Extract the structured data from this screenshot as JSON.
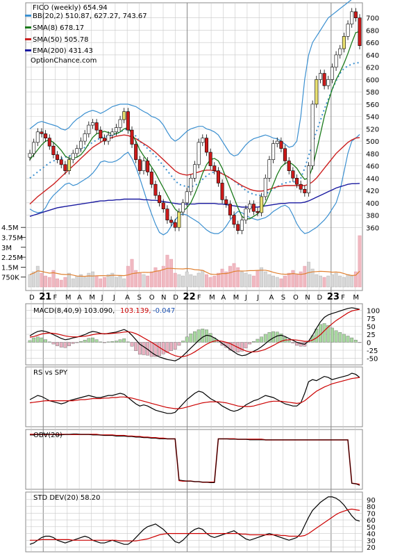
{
  "header": {
    "title": "FICO (weekly) 654.94",
    "legend": [
      {
        "label": "BB(20,2) 510.87, 627.27, 743.67",
        "color": "#3a8fd0"
      },
      {
        "label": "SMA(8) 678.17",
        "color": "#1a7a1a"
      },
      {
        "label": "SMA(50) 505.78",
        "color": "#cc2020"
      },
      {
        "label": "EMA(200) 431.43",
        "color": "#1a1aa0"
      }
    ],
    "watermark": "OptionChance.com"
  },
  "panels": {
    "macd": {
      "label": "MACD(8,40,9) 103.090,",
      "value_signal": "103.139,",
      "value_hist": "-0.047",
      "signal_color": "#cc0000",
      "hist_color": "#1a4fb0"
    },
    "rs": {
      "label": "RS vs SPY"
    },
    "obv": {
      "label": "OBV(20)"
    },
    "std": {
      "label": "STD DEV(20) 58.20"
    }
  },
  "colors": {
    "up_candle": "#ffffff",
    "down_candle": "#cc1a1a",
    "yellow_up": "#e8e070",
    "grid": "#c8c8c8",
    "price_line": "#000000",
    "volume_up": "#d8d8d8",
    "volume_down": "#f0b8c0",
    "volume_ma": "#e08030",
    "hist_up": "#a8d8a0",
    "hist_down": "#e8b0c0"
  },
  "chart_data": [
    {
      "type": "candlestick",
      "title": "FICO (weekly) 654.94",
      "x_tick_labels": [
        "D",
        "21",
        "F",
        "M",
        "A",
        "M",
        "J",
        "J",
        "A",
        "S",
        "O",
        "N",
        "D",
        "22",
        "F",
        "M",
        "A",
        "M",
        "J",
        "J",
        "A",
        "S",
        "O",
        "N",
        "D",
        "23",
        "F",
        "M"
      ],
      "y_ticks": [
        360,
        380,
        400,
        420,
        440,
        460,
        480,
        500,
        520,
        540,
        560,
        580,
        600,
        620,
        640,
        660,
        680,
        700
      ],
      "ylim": [
        340,
        720
      ],
      "close_series": [
        480,
        498,
        515,
        512,
        505,
        492,
        478,
        470,
        462,
        452,
        470,
        480,
        488,
        500,
        512,
        526,
        530,
        518,
        505,
        500,
        510,
        515,
        522,
        535,
        548,
        518,
        495,
        470,
        452,
        468,
        450,
        430,
        412,
        400,
        390,
        372,
        368,
        360,
        385,
        400,
        418,
        440,
        462,
        498,
        505,
        482,
        460,
        452,
        432,
        405,
        398,
        380,
        365,
        355,
        372,
        390,
        398,
        386,
        384,
        410,
        440,
        470,
        496,
        500,
        488,
        468,
        452,
        440,
        430,
        422,
        416,
        460,
        560,
        600,
        610,
        590,
        600,
        620,
        640,
        650,
        670,
        690,
        710,
        700,
        654.94
      ],
      "sma8": [
        470,
        478,
        486,
        494,
        500,
        502,
        498,
        492,
        485,
        476,
        472,
        472,
        474,
        478,
        486,
        496,
        506,
        512,
        514,
        516,
        514,
        512,
        512,
        515,
        520,
        522,
        512,
        500,
        486,
        476,
        468,
        458,
        448,
        436,
        424,
        412,
        400,
        390,
        384,
        386,
        392,
        400,
        414,
        430,
        448,
        462,
        470,
        472,
        468,
        456,
        440,
        424,
        408,
        392,
        378,
        374,
        374,
        378,
        382,
        390,
        400,
        414,
        430,
        446,
        458,
        464,
        466,
        462,
        456,
        446,
        438,
        440,
        458,
        484,
        512,
        540,
        564,
        584,
        600,
        612,
        626,
        642,
        660,
        676,
        678.17
      ],
      "sma50": [
        398,
        404,
        410,
        415,
        420,
        425,
        430,
        436,
        442,
        448,
        454,
        460,
        466,
        472,
        478,
        484,
        490,
        494,
        498,
        502,
        504,
        506,
        508,
        509,
        510,
        509,
        507,
        504,
        500,
        496,
        492,
        487,
        482,
        476,
        470,
        464,
        458,
        452,
        448,
        446,
        445,
        446,
        448,
        450,
        452,
        453,
        453,
        452,
        450,
        447,
        444,
        440,
        436,
        432,
        428,
        425,
        422,
        420,
        419,
        419,
        420,
        422,
        424,
        426,
        427,
        428,
        428,
        428,
        428,
        428,
        428,
        430,
        434,
        440,
        448,
        456,
        464,
        472,
        480,
        486,
        492,
        498,
        502,
        505,
        505.78
      ],
      "ema200": [
        378,
        380,
        382,
        384,
        386,
        388,
        390,
        392,
        393,
        394,
        395,
        396,
        397,
        398,
        399,
        400,
        401,
        402,
        403,
        403,
        404,
        404,
        405,
        405,
        406,
        406,
        406,
        406,
        406,
        405,
        405,
        404,
        404,
        403,
        402,
        401,
        400,
        399,
        398,
        398,
        398,
        398,
        398,
        399,
        399,
        399,
        399,
        399,
        398,
        398,
        397,
        396,
        395,
        394,
        393,
        393,
        393,
        393,
        393,
        394,
        395,
        396,
        397,
        398,
        399,
        399,
        400,
        400,
        400,
        400,
        401,
        403,
        406,
        409,
        412,
        415,
        418,
        421,
        424,
        426,
        428,
        430,
        431,
        431,
        431.43
      ],
      "bb_upper": [
        520,
        525,
        530,
        532,
        530,
        528,
        526,
        524,
        520,
        518,
        522,
        530,
        536,
        540,
        545,
        548,
        550,
        548,
        545,
        548,
        552,
        556,
        558,
        560,
        560,
        560,
        558,
        556,
        552,
        548,
        545,
        540,
        538,
        534,
        526,
        515,
        505,
        500,
        504,
        510,
        516,
        520,
        522,
        524,
        524,
        520,
        518,
        515,
        510,
        500,
        490,
        480,
        476,
        478,
        486,
        494,
        500,
        504,
        506,
        508,
        510,
        508,
        505,
        504,
        500,
        495,
        490,
        492,
        500,
        540,
        600,
        640,
        660,
        670,
        680,
        690,
        700,
        705,
        710,
        715,
        720,
        725,
        730,
        740,
        743.67
      ],
      "bb_middle": [
        440,
        445,
        450,
        455,
        460,
        465,
        468,
        470,
        472,
        474,
        476,
        478,
        482,
        486,
        490,
        494,
        498,
        502,
        505,
        507,
        508,
        510,
        512,
        515,
        518,
        520,
        515,
        508,
        500,
        494,
        488,
        482,
        476,
        468,
        460,
        452,
        444,
        436,
        430,
        428,
        426,
        426,
        428,
        432,
        438,
        444,
        448,
        450,
        450,
        448,
        444,
        440,
        436,
        430,
        426,
        420,
        416,
        414,
        412,
        412,
        414,
        418,
        422,
        426,
        430,
        432,
        434,
        434,
        434,
        440,
        456,
        476,
        496,
        516,
        534,
        552,
        568,
        584,
        598,
        610,
        618,
        622,
        625,
        627,
        627.27
      ],
      "bb_lower": [
        390,
        386,
        384,
        385,
        392,
        404,
        412,
        418,
        424,
        430,
        432,
        428,
        430,
        434,
        438,
        442,
        448,
        456,
        466,
        468,
        466,
        466,
        468,
        472,
        478,
        482,
        472,
        458,
        440,
        420,
        400,
        382,
        365,
        352,
        348,
        352,
        362,
        372,
        380,
        382,
        380,
        376,
        372,
        368,
        362,
        356,
        352,
        350,
        350,
        354,
        362,
        372,
        380,
        386,
        384,
        380,
        376,
        374,
        372,
        374,
        376,
        380,
        386,
        390,
        394,
        396,
        392,
        380,
        366,
        356,
        350,
        352,
        356,
        360,
        366,
        372,
        380,
        390,
        400,
        420,
        450,
        480,
        500,
        505,
        510.87
      ],
      "volume_labels": [
        "750K",
        "1.5M",
        "2.25M",
        "3M",
        "3.75M",
        "4.5M"
      ]
    },
    {
      "type": "line",
      "title": "MACD(8,40,9) 103.090, 103.139, -0.047",
      "y_ticks": [
        -50,
        -25,
        0,
        25,
        50,
        75,
        100
      ],
      "ylim": [
        -62,
        112
      ],
      "macd": [
        20,
        28,
        34,
        36,
        34,
        30,
        24,
        18,
        12,
        8,
        10,
        14,
        16,
        20,
        24,
        30,
        34,
        32,
        28,
        26,
        28,
        30,
        32,
        36,
        40,
        34,
        22,
        8,
        -6,
        -14,
        -22,
        -32,
        -40,
        -46,
        -50,
        -54,
        -56,
        -58,
        -52,
        -42,
        -30,
        -18,
        -6,
        6,
        16,
        22,
        20,
        14,
        6,
        -4,
        -12,
        -22,
        -30,
        -38,
        -42,
        -40,
        -34,
        -28,
        -22,
        -14,
        -4,
        6,
        14,
        20,
        22,
        18,
        12,
        6,
        0,
        -4,
        -6,
        4,
        22,
        44,
        64,
        78,
        86,
        90,
        94,
        98,
        102,
        106,
        108,
        106,
        103.09
      ],
      "signal": [
        16,
        18,
        22,
        26,
        28,
        29,
        28,
        26,
        23,
        20,
        18,
        17,
        17,
        18,
        19,
        21,
        24,
        26,
        27,
        27,
        27,
        28,
        29,
        30,
        32,
        33,
        31,
        27,
        21,
        14,
        7,
        0,
        -8,
        -16,
        -24,
        -31,
        -37,
        -42,
        -45,
        -45,
        -42,
        -37,
        -30,
        -22,
        -14,
        -6,
        0,
        4,
        5,
        3,
        0,
        -4,
        -10,
        -16,
        -22,
        -27,
        -30,
        -30,
        -29,
        -26,
        -22,
        -16,
        -10,
        -3,
        3,
        7,
        8,
        8,
        7,
        5,
        3,
        3,
        7,
        14,
        24,
        36,
        48,
        58,
        68,
        76,
        84,
        92,
        98,
        101,
        103.139
      ],
      "hist_value": -0.047
    },
    {
      "type": "line",
      "title": "RS vs SPY",
      "rs": [
        46,
        50,
        54,
        52,
        48,
        44,
        42,
        40,
        38,
        40,
        44,
        46,
        48,
        50,
        52,
        54,
        52,
        50,
        50,
        52,
        54,
        54,
        56,
        58,
        56,
        50,
        44,
        38,
        34,
        36,
        34,
        30,
        26,
        24,
        22,
        20,
        20,
        22,
        30,
        38,
        46,
        52,
        58,
        62,
        60,
        54,
        48,
        44,
        40,
        34,
        30,
        26,
        24,
        26,
        30,
        36,
        40,
        44,
        46,
        50,
        54,
        52,
        50,
        46,
        42,
        38,
        36,
        34,
        34,
        40,
        58,
        80,
        84,
        82,
        86,
        90,
        88,
        84,
        86,
        88,
        90,
        92,
        96,
        94,
        88
      ],
      "rs_ma": [
        40,
        41,
        42,
        43,
        44,
        44,
        44,
        44,
        44,
        44,
        44,
        44,
        45,
        46,
        46,
        47,
        48,
        48,
        48,
        49,
        49,
        50,
        50,
        51,
        51,
        50,
        49,
        47,
        45,
        43,
        41,
        39,
        37,
        35,
        33,
        31,
        30,
        29,
        29,
        30,
        32,
        34,
        36,
        38,
        40,
        41,
        42,
        42,
        42,
        41,
        40,
        38,
        36,
        34,
        33,
        33,
        33,
        34,
        36,
        38,
        40,
        42,
        43,
        43,
        43,
        42,
        41,
        40,
        39,
        40,
        44,
        50,
        56,
        62,
        66,
        70,
        73,
        76,
        78,
        80,
        82,
        84,
        86,
        87,
        88
      ]
    },
    {
      "type": "line",
      "title": "OBV(20)",
      "obv": [
        95,
        95,
        96,
        96,
        97,
        96,
        96,
        95,
        95,
        96,
        96,
        97,
        97,
        96,
        96,
        96,
        95,
        95,
        95,
        94,
        94,
        94,
        93,
        93,
        93,
        92,
        92,
        91,
        91,
        90,
        90,
        89,
        89,
        88,
        88,
        88,
        88,
        88,
        12,
        11,
        10,
        10,
        9,
        9,
        8,
        8,
        7,
        7,
        88,
        88,
        88,
        87,
        87,
        87,
        87,
        87,
        86,
        86,
        86,
        86,
        86,
        86,
        86,
        86,
        86,
        86,
        86,
        86,
        86,
        86,
        86,
        86,
        86,
        86,
        86,
        86,
        86,
        86,
        86,
        86,
        86,
        86,
        6,
        5,
        2
      ],
      "obv_ma": [
        96,
        96,
        96,
        96,
        96,
        96,
        96,
        96,
        96,
        96,
        96,
        96,
        96,
        96,
        96,
        96,
        96,
        96,
        95,
        95,
        95,
        95,
        94,
        94,
        94,
        93,
        93,
        92,
        92,
        91,
        91,
        90,
        90,
        89,
        89,
        88,
        88,
        88,
        11,
        10,
        10,
        10,
        9,
        9,
        8,
        8,
        8,
        8,
        88,
        88,
        88,
        88,
        88,
        87,
        87,
        87,
        87,
        87,
        87,
        87,
        86,
        86,
        86,
        86,
        86,
        86,
        86,
        86,
        86,
        86,
        86,
        86,
        86,
        86,
        86,
        86,
        86,
        86,
        86,
        86,
        86,
        86,
        6,
        5,
        4
      ]
    },
    {
      "type": "line",
      "title": "STD DEV(20) 58.20",
      "y_ticks": [
        20,
        30,
        40,
        50,
        60,
        70,
        80,
        90
      ],
      "ylim": [
        17,
        97
      ],
      "std": [
        24,
        26,
        30,
        34,
        36,
        36,
        34,
        30,
        28,
        26,
        28,
        30,
        32,
        34,
        36,
        34,
        30,
        28,
        26,
        26,
        28,
        30,
        28,
        26,
        24,
        24,
        28,
        34,
        40,
        46,
        50,
        52,
        54,
        50,
        46,
        40,
        34,
        28,
        26,
        30,
        36,
        42,
        46,
        48,
        46,
        40,
        36,
        34,
        36,
        38,
        40,
        42,
        44,
        40,
        36,
        32,
        30,
        32,
        34,
        36,
        38,
        40,
        38,
        36,
        34,
        32,
        30,
        32,
        34,
        40,
        52,
        64,
        74,
        80,
        86,
        90,
        94,
        94,
        92,
        88,
        82,
        74,
        66,
        60,
        58.2
      ],
      "std_ma": [
        30,
        30,
        30,
        31,
        31,
        31,
        31,
        31,
        31,
        31,
        31,
        30,
        30,
        30,
        30,
        30,
        30,
        30,
        30,
        30,
        30,
        30,
        30,
        29,
        29,
        29,
        29,
        29,
        30,
        31,
        32,
        34,
        36,
        38,
        39,
        40,
        40,
        40,
        40,
        40,
        40,
        40,
        40,
        40,
        40,
        40,
        40,
        40,
        40,
        40,
        40,
        40,
        40,
        40,
        39,
        39,
        38,
        38,
        38,
        38,
        38,
        38,
        38,
        38,
        37,
        37,
        36,
        36,
        36,
        36,
        37,
        40,
        44,
        48,
        52,
        56,
        60,
        64,
        68,
        71,
        73,
        75,
        76,
        75,
        74
      ]
    }
  ]
}
